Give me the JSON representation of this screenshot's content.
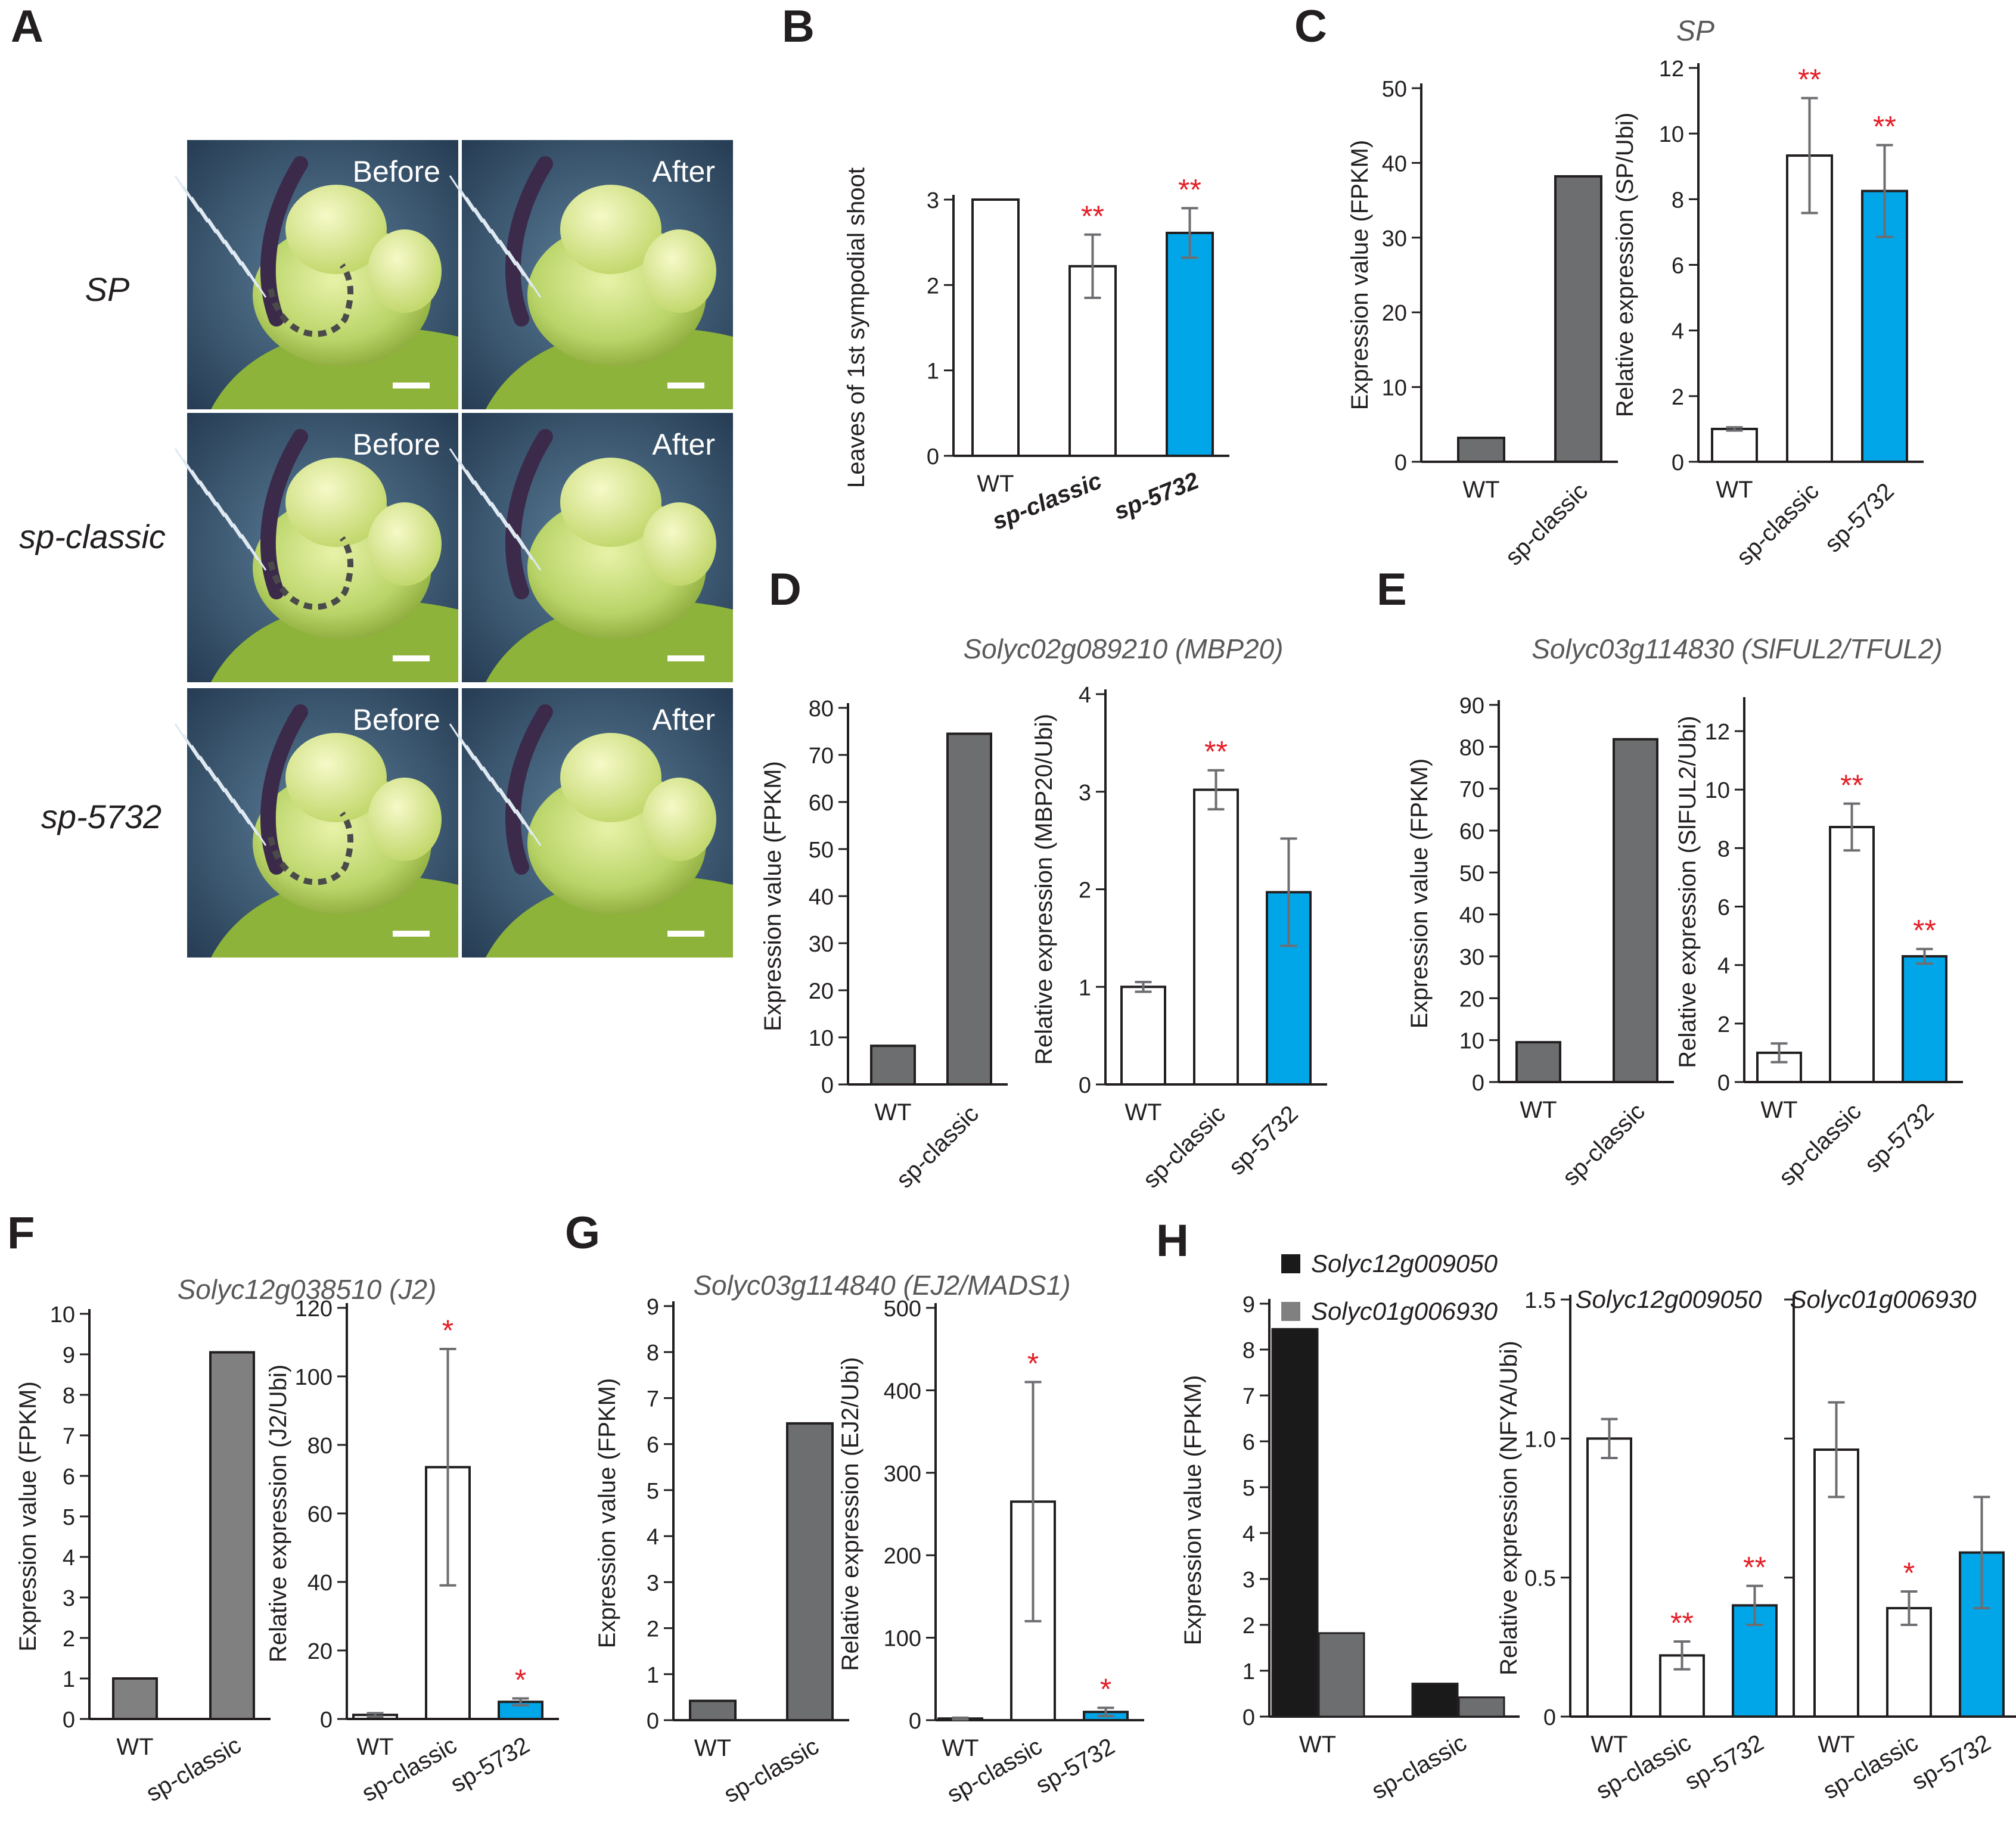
{
  "figure": {
    "colors": {
      "white_bar": "#ffffff",
      "mutant_blue": "#00a6e8",
      "rnaseq_gray": "#6d6e70",
      "light_gray": "#808080",
      "black_bar": "#1a1a1a",
      "star_red": "#e41e26",
      "axis": "#231f20",
      "error_bar": "#6d6e71"
    },
    "panel_a": {
      "letter": "A",
      "rows": [
        "SP",
        "sp-classic",
        "sp-5732"
      ],
      "tiles": [
        [
          "Before",
          "After"
        ],
        [
          "Before",
          "After"
        ],
        [
          "Before",
          "After"
        ]
      ]
    },
    "panels": {
      "B": {
        "letter": "B"
      },
      "C": {
        "letter": "C",
        "title": "SP"
      },
      "D": {
        "letter": "D",
        "title": "Solyc02g089210 (MBP20)"
      },
      "E": {
        "letter": "E",
        "title": "Solyc03g114830 (SlFUL2/TFUL2)"
      },
      "F": {
        "letter": "F",
        "title": "Solyc12g038510 (J2)"
      },
      "G": {
        "letter": "G",
        "title": "Solyc03g114840 (EJ2/MADS1)"
      },
      "H": {
        "letter": "H",
        "legend": [
          "Solyc12g009050",
          "Solyc01g006930"
        ]
      }
    }
  },
  "chart_data": [
    {
      "id": "B",
      "type": "bar",
      "xlabel": "",
      "ylabel": "Leaves of 1st sympodial shoot",
      "ylim": [
        0,
        3
      ],
      "ticks": [
        0,
        1,
        2,
        3
      ],
      "categories": [
        "WT",
        "sp-classic",
        "sp-5732"
      ],
      "values": [
        3.0,
        2.22,
        2.61
      ],
      "errors": [
        0,
        0.37,
        0.29
      ],
      "stars": [
        "",
        "**",
        "**"
      ],
      "fills": [
        "white",
        "white",
        "blue"
      ]
    },
    {
      "id": "C1",
      "type": "bar",
      "ylabel": "Expression value (FPKM)",
      "ylim": [
        0,
        50
      ],
      "ticks": [
        0,
        10,
        20,
        30,
        40,
        50
      ],
      "categories": [
        "WT",
        "sp-classic"
      ],
      "values": [
        3.2,
        38.2
      ],
      "fills": [
        "gray",
        "gray"
      ]
    },
    {
      "id": "C2",
      "type": "bar",
      "ylabel": "Relative expression (SP/Ubi)",
      "ylim": [
        0,
        12
      ],
      "ticks": [
        0,
        2,
        4,
        6,
        8,
        10,
        12
      ],
      "categories": [
        "WT",
        "sp-classic",
        "sp-5732"
      ],
      "values": [
        1.0,
        9.33,
        8.25
      ],
      "errors": [
        0.05,
        1.75,
        1.4
      ],
      "stars": [
        "",
        "**",
        "**"
      ],
      "fills": [
        "white",
        "white",
        "blue"
      ]
    },
    {
      "id": "D1",
      "type": "bar",
      "ylabel": "Expression value (FPKM)",
      "ylim": [
        0,
        80
      ],
      "ticks": [
        0,
        10,
        20,
        30,
        40,
        50,
        60,
        70,
        80
      ],
      "categories": [
        "WT",
        "sp-classic"
      ],
      "values": [
        8.2,
        74.5
      ],
      "fills": [
        "gray",
        "gray"
      ]
    },
    {
      "id": "D2",
      "type": "bar",
      "ylabel": "Relative expression (MBP20/Ubi)",
      "ylim": [
        0,
        4
      ],
      "ticks": [
        0,
        1,
        2,
        3,
        4
      ],
      "categories": [
        "WT",
        "sp-classic",
        "sp-5732"
      ],
      "values": [
        1.0,
        3.02,
        1.97
      ],
      "errors": [
        0.05,
        0.2,
        0.55
      ],
      "stars": [
        "",
        "**",
        ""
      ],
      "fills": [
        "white",
        "white",
        "blue"
      ]
    },
    {
      "id": "E1",
      "type": "bar",
      "ylabel": "Expression value (FPKM)",
      "ylim": [
        0,
        90
      ],
      "ticks": [
        0,
        10,
        20,
        30,
        40,
        50,
        60,
        70,
        80,
        90
      ],
      "categories": [
        "WT",
        "sp-classic"
      ],
      "values": [
        9.5,
        81.8
      ],
      "fills": [
        "gray",
        "gray"
      ]
    },
    {
      "id": "E2",
      "type": "bar",
      "ylabel": "Relative expression (SlFUL2/Ubi)",
      "ylim": [
        0,
        13
      ],
      "ticks": [
        0,
        2,
        4,
        6,
        8,
        10,
        12
      ],
      "categories": [
        "WT",
        "sp-classic",
        "sp-5732"
      ],
      "values": [
        1.0,
        8.72,
        4.3
      ],
      "errors": [
        0.32,
        0.8,
        0.25
      ],
      "stars": [
        "",
        "**",
        "**"
      ],
      "fills": [
        "white",
        "white",
        "blue"
      ]
    },
    {
      "id": "F1",
      "type": "bar",
      "ylabel": "Expression value (FPKM)",
      "ylim": [
        0,
        10
      ],
      "ticks": [
        0,
        1,
        2,
        3,
        4,
        5,
        6,
        7,
        8,
        9,
        10
      ],
      "categories": [
        "WT",
        "sp-classic"
      ],
      "values": [
        1.0,
        9.05
      ],
      "fills": [
        "lightgray",
        "lightgray"
      ]
    },
    {
      "id": "F2",
      "type": "bar",
      "ylabel": "Relative expression (J2/Ubi)",
      "ylim": [
        0,
        120
      ],
      "ticks": [
        0,
        20,
        40,
        60,
        80,
        100,
        120
      ],
      "categories": [
        "WT",
        "sp-classic",
        "sp-5732"
      ],
      "values": [
        1.2,
        73.5,
        5.0
      ],
      "errors": [
        0.5,
        34.5,
        1.0
      ],
      "stars": [
        "",
        "*",
        "*"
      ],
      "fills": [
        "white",
        "white",
        "blue"
      ]
    },
    {
      "id": "G1",
      "type": "bar",
      "ylabel": "Expression value (FPKM)",
      "ylim": [
        0,
        9
      ],
      "ticks": [
        0,
        1,
        2,
        3,
        4,
        5,
        6,
        7,
        8,
        9
      ],
      "categories": [
        "WT",
        "sp-classic"
      ],
      "values": [
        0.42,
        6.45
      ],
      "fills": [
        "gray",
        "gray"
      ]
    },
    {
      "id": "G2",
      "type": "bar",
      "ylabel": "Relative expression (EJ2/Ubi)",
      "ylim": [
        0,
        500
      ],
      "ticks": [
        0,
        100,
        200,
        300,
        400,
        500
      ],
      "categories": [
        "WT",
        "sp-classic",
        "sp-5732"
      ],
      "values": [
        2.0,
        265,
        10
      ],
      "errors": [
        1,
        145,
        5
      ],
      "stars": [
        "",
        "*",
        "*"
      ],
      "fills": [
        "white",
        "white",
        "blue"
      ]
    },
    {
      "id": "H1",
      "type": "bar",
      "ylabel": "Expression value (FPKM)",
      "ylim": [
        0,
        9
      ],
      "ticks": [
        0,
        1,
        2,
        3,
        4,
        5,
        6,
        7,
        8,
        9
      ],
      "categories": [
        "WT",
        "sp-classic"
      ],
      "series": [
        {
          "name": "Solyc12g009050",
          "values": [
            8.45,
            0.72
          ]
        },
        {
          "name": "Solyc01g006930",
          "values": [
            1.82,
            0.42
          ]
        }
      ]
    },
    {
      "id": "H2",
      "type": "bar",
      "title": "Solyc12g009050",
      "ylabel": "Relative expression (NFYA/Ubi)",
      "ylim": [
        0,
        1.5
      ],
      "ticks": [
        0,
        0.5,
        1.0,
        1.5
      ],
      "categories": [
        "WT",
        "sp-classic",
        "sp-5732"
      ],
      "values": [
        1.0,
        0.22,
        0.4
      ],
      "errors": [
        0.07,
        0.05,
        0.07
      ],
      "stars": [
        "",
        "**",
        "**"
      ],
      "fills": [
        "white",
        "white",
        "blue"
      ]
    },
    {
      "id": "H3",
      "type": "bar",
      "title": "Solyc01g006930",
      "ylabel": "",
      "ylim": [
        0,
        1.5
      ],
      "ticks": [
        0,
        0.5,
        1.0,
        1.5
      ],
      "categories": [
        "WT",
        "sp-classic",
        "sp-5732"
      ],
      "values": [
        0.96,
        0.39,
        0.59
      ],
      "errors": [
        0.17,
        0.06,
        0.2
      ],
      "stars": [
        "",
        "*",
        ""
      ],
      "fills": [
        "white",
        "white",
        "blue"
      ]
    }
  ]
}
